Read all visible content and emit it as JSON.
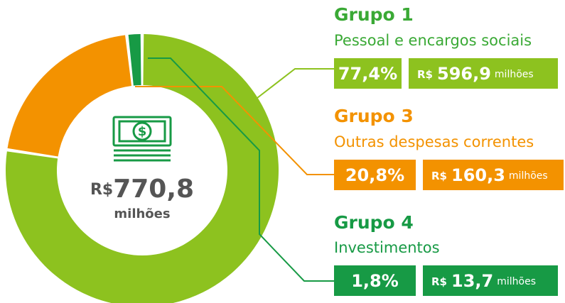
{
  "chart_data": {
    "type": "pie",
    "donut": true,
    "categories": [
      "Grupo 1",
      "Grupo 3",
      "Grupo 4"
    ],
    "descriptions": [
      "Pessoal e encargos sociais",
      "Outras despesas correntes",
      "Investimentos"
    ],
    "values": [
      77.4,
      20.8,
      1.8
    ],
    "value_labels": [
      "77,4%",
      "20,8%",
      "1,8%"
    ],
    "amounts": [
      596.9,
      160.3,
      13.7
    ],
    "amount_labels": [
      "596,9",
      "160,3",
      "13,7"
    ],
    "colors": [
      "#8dc21f",
      "#f39200",
      "#179a45"
    ],
    "title_colors": [
      "#3aa935",
      "#f39200",
      "#179a45"
    ],
    "currency": "R$",
    "unit": "milhões",
    "total": 770.8,
    "total_label": "770,8"
  }
}
